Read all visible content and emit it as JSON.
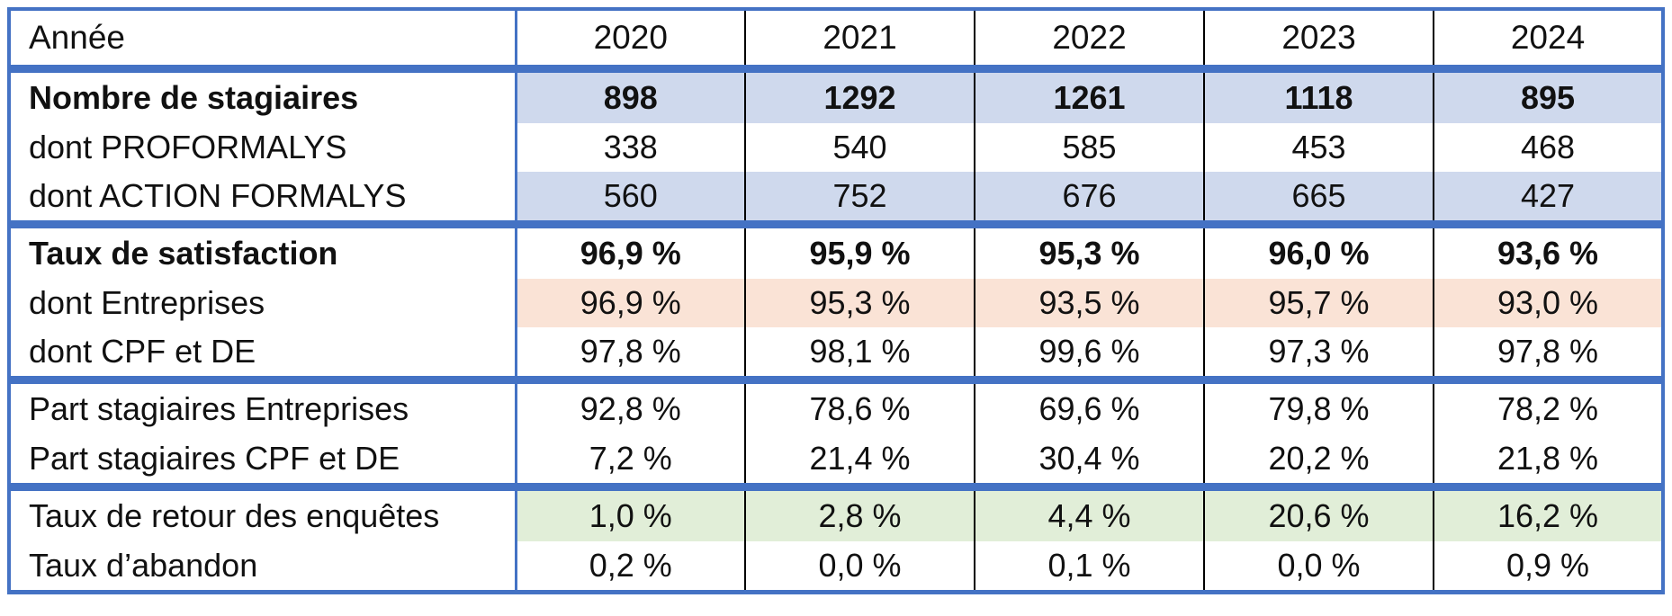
{
  "colors": {
    "border": "#4472c4",
    "blue_fill": "#cfd9ed",
    "peach_fill": "#fae3d6",
    "green_fill": "#e1eed8"
  },
  "header": {
    "label": "Année",
    "years": [
      "2020",
      "2021",
      "2022",
      "2023",
      "2024"
    ]
  },
  "rows": [
    {
      "label": "Nombre de stagiaires",
      "values": [
        "898",
        "1292",
        "1261",
        "1118",
        "895"
      ]
    },
    {
      "label": "dont PROFORMALYS",
      "values": [
        "338",
        "540",
        "585",
        "453",
        "468"
      ]
    },
    {
      "label": "dont ACTION FORMALYS",
      "values": [
        "560",
        "752",
        "676",
        "665",
        "427"
      ]
    },
    {
      "label": "Taux de satisfaction",
      "values": [
        "96,9 %",
        "95,9 %",
        "95,3 %",
        "96,0 %",
        "93,6 %"
      ]
    },
    {
      "label": "dont Entreprises",
      "values": [
        "96,9 %",
        "95,3 %",
        "93,5 %",
        "95,7 %",
        "93,0 %"
      ]
    },
    {
      "label": "dont CPF et DE",
      "values": [
        "97,8 %",
        "98,1 %",
        "99,6 %",
        "97,3 %",
        "97,8 %"
      ]
    },
    {
      "label": "Part stagiaires Entreprises",
      "values": [
        "92,8 %",
        "78,6 %",
        "69,6 %",
        "79,8 %",
        "78,2 %"
      ]
    },
    {
      "label": "Part stagiaires CPF et DE",
      "values": [
        "7,2 %",
        "21,4 %",
        "30,4 %",
        "20,2 %",
        "21,8 %"
      ]
    },
    {
      "label": "Taux de retour des enquêtes",
      "values": [
        "1,0 %",
        "2,8 %",
        "4,4 %",
        "20,6 %",
        "16,2 %"
      ]
    },
    {
      "label": "Taux d’abandon",
      "values": [
        "0,2 %",
        "0,0 %",
        "0,1 %",
        "0,0 %",
        "0,9 %"
      ]
    }
  ]
}
